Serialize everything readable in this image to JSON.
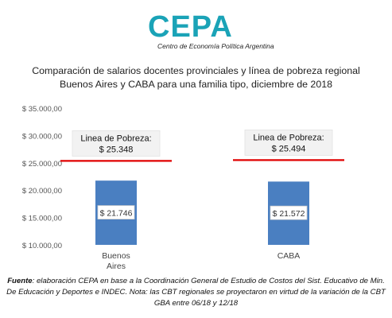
{
  "logo": {
    "word": "CEPA",
    "subtitle": "Centro de Economía Política Argentina"
  },
  "title_line1": "Comparación de salarios docentes provinciales y línea de pobreza regional",
  "title_line2": "Buenos Aires y CABA para una familia tipo, diciembre de 2018",
  "chart_data": {
    "type": "bar",
    "title": "Comparación de salarios docentes provinciales y línea de pobreza regional Buenos Aires y CABA para una familia tipo, diciembre de 2018",
    "categories": [
      "Buenos Aires",
      "CABA"
    ],
    "category_label_lines": [
      [
        "Buenos",
        "Aires"
      ],
      [
        "CABA"
      ]
    ],
    "values": [
      21746,
      21572
    ],
    "value_labels": [
      "$ 21.746",
      "$ 21.572"
    ],
    "ylim": [
      10000,
      35000
    ],
    "yticks": [
      10000,
      15000,
      20000,
      25000,
      30000,
      35000
    ],
    "ytick_labels": [
      "$ 10.000,00",
      "$ 15.000,00",
      "$ 20.000,00",
      "$ 25.000,00",
      "$ 30.000,00",
      "$ 35.000,00"
    ],
    "grid": false,
    "bar_color": "#4a7fc1",
    "poverty_line": {
      "label": "Linea de Pobreza:",
      "values": [
        25348,
        25494
      ],
      "value_labels": [
        "$ 25.348",
        "$ 25.494"
      ],
      "color": "#e00000"
    }
  },
  "footnote": {
    "lead": "Fuente",
    "line1_rest": ": elaboración CEPA en base a la Coordinación General de Estudio de Costos del Sist. Educativo de Min.",
    "line2": "De Educación y Deportes e INDEC. Nota: las CBT regionales se proyectaron en virtud de la variación de la CBT",
    "line3": "GBA entre 06/18 y 12/18"
  }
}
